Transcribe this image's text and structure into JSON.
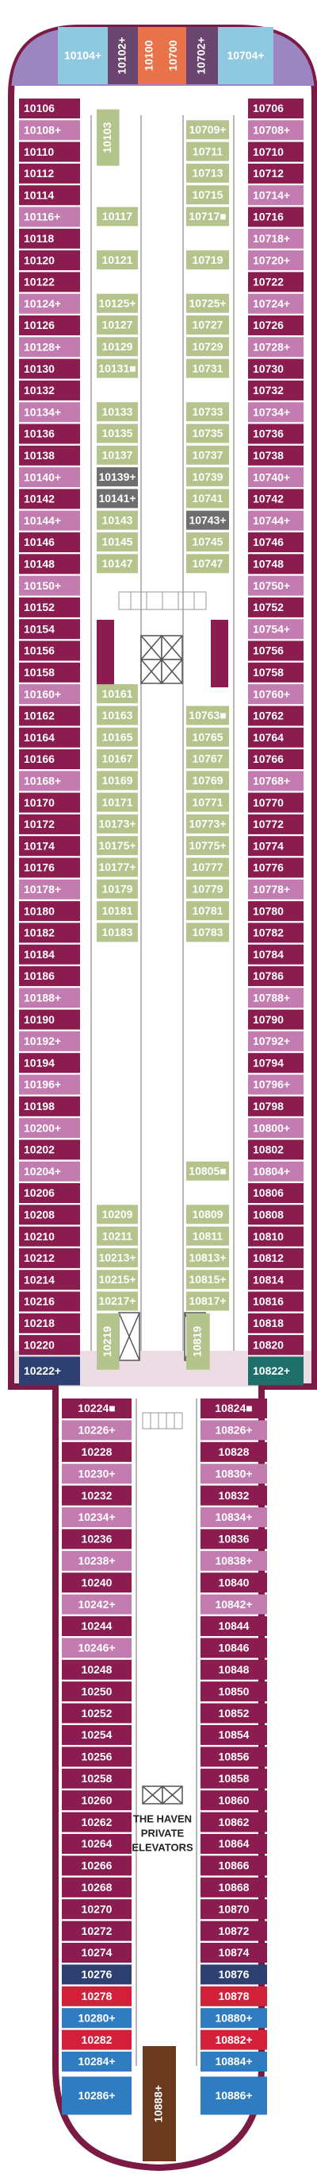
{
  "forward": [
    "10104+",
    "10102+",
    "10100",
    "10700",
    "10702+",
    "10704+"
  ],
  "port_outer": [
    "10106",
    "10108+",
    "10110",
    "10112",
    "10114",
    "10116+",
    "10118",
    "10120",
    "10122",
    "10124+",
    "10126",
    "10128+",
    "10130",
    "10132",
    "10134+",
    "10136",
    "10138",
    "10140+",
    "10142",
    "10144+",
    "10146",
    "10148",
    "10150+",
    "10152",
    "10154",
    "10156",
    "10158",
    "10160+",
    "10162",
    "10164",
    "10166",
    "10168+",
    "10170",
    "10172",
    "10174",
    "10176",
    "10178+",
    "10180",
    "10182",
    "10184",
    "10186",
    "10188+",
    "10190",
    "10192+",
    "10194",
    "10196+",
    "10198",
    "10200+",
    "10202",
    "10204+",
    "10206",
    "10208",
    "10210",
    "10212",
    "10214",
    "10216",
    "10218",
    "10220",
    "10222+"
  ],
  "starboard_outer": [
    "10706",
    "10708+",
    "10710",
    "10712",
    "10714+",
    "10716",
    "10718+",
    "10720+",
    "10722",
    "10724+",
    "10726",
    "10728+",
    "10730",
    "10732",
    "10734+",
    "10736",
    "10738",
    "10740+",
    "10742",
    "10744+",
    "10746",
    "10748",
    "10750+",
    "10752",
    "10754+",
    "10756",
    "10758",
    "10760+",
    "10762",
    "10764",
    "10766",
    "10768+",
    "10770",
    "10772",
    "10774",
    "10776",
    "10778+",
    "10780",
    "10782",
    "10784",
    "10786",
    "10788+",
    "10790",
    "10792+",
    "10794",
    "10796+",
    "10798",
    "10800+",
    "10802",
    "10804+",
    "10806",
    "10808",
    "10810",
    "10812",
    "10814",
    "10816",
    "10818",
    "10820",
    "10822+"
  ],
  "port_inner": [
    [
      "10103"
    ],
    [
      "10117"
    ],
    [
      "10121"
    ],
    [
      "10125+",
      "10127",
      "10129",
      "10131■"
    ],
    [
      "10133",
      "10135",
      "10137",
      "10139+",
      "10141+",
      "10143",
      "10145",
      "10147"
    ],
    [
      "10161",
      "10163",
      "10165",
      "10167",
      "10169",
      "10171",
      "10173+",
      "10175+",
      "10177+",
      "10179",
      "10181",
      "10183"
    ],
    [
      "10209",
      "10211",
      "10213+",
      "10215+",
      "10217+"
    ],
    [
      "10219"
    ]
  ],
  "starboard_inner": [
    [
      "10709+",
      "10711",
      "10713",
      "10715",
      "10717■"
    ],
    [
      "10719"
    ],
    [
      "10725+",
      "10727",
      "10729",
      "10731"
    ],
    [
      "10733",
      "10735",
      "10737",
      "10739",
      "10741",
      "10743+",
      "10745",
      "10747"
    ],
    [
      "10763■",
      "10765",
      "10767",
      "10769",
      "10771",
      "10773+",
      "10775+",
      "10777",
      "10779",
      "10781",
      "10783"
    ],
    [
      "10805■"
    ],
    [
      "10809",
      "10811",
      "10813+",
      "10815+",
      "10817+"
    ],
    [
      "10819"
    ]
  ],
  "aft_port": [
    "10224■",
    "10226+",
    "10228",
    "10230+",
    "10232",
    "10234+",
    "10236",
    "10238+",
    "10240",
    "10242+",
    "10244",
    "10246+",
    "10248",
    "10250",
    "10252",
    "10254",
    "10256",
    "10258",
    "10260",
    "10262",
    "10264",
    "10266",
    "10268",
    "10270",
    "10272",
    "10274",
    "10276",
    "10278",
    "10280+",
    "10282",
    "10284+",
    "10286+"
  ],
  "aft_starboard": [
    "10824■",
    "10826+",
    "10828",
    "10830+",
    "10832",
    "10834+",
    "10836",
    "10838+",
    "10840",
    "10842+",
    "10844",
    "10846",
    "10848",
    "10850",
    "10852",
    "10854",
    "10856",
    "10858",
    "10860",
    "10862",
    "10864",
    "10866",
    "10868",
    "10870",
    "10872",
    "10874",
    "10876",
    "10878",
    "10880+",
    "10882+",
    "10884+",
    "10886+"
  ],
  "aft_center": "10888+",
  "elevators": [
    "THE HAVEN",
    "PRIVATE",
    "ELEVATORS"
  ]
}
